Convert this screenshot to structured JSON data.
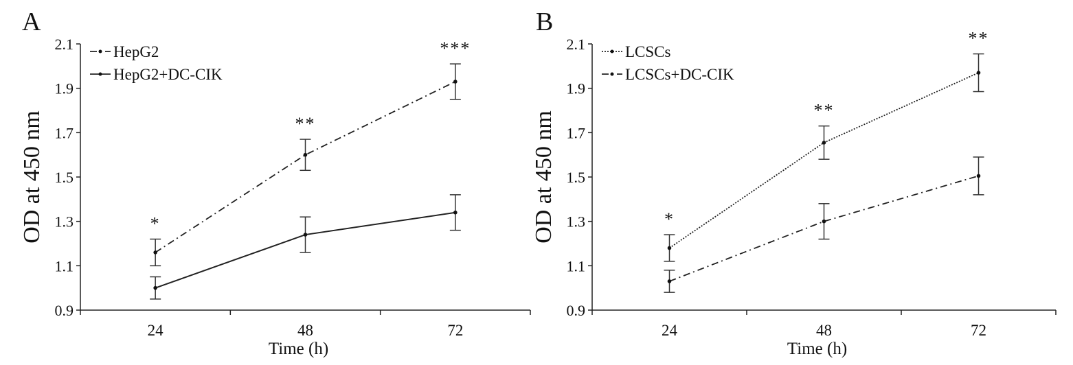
{
  "chart_data": [
    {
      "panel": "A",
      "type": "line",
      "xlabel": "Time (h)",
      "ylabel": "OD at 450 nm",
      "categories": [
        "24",
        "48",
        "72"
      ],
      "ylim": [
        0.9,
        2.1
      ],
      "yticks": [
        "0.9",
        "1.1",
        "1.3",
        "1.5",
        "1.7",
        "1.9",
        "2.1"
      ],
      "legend_position": "top-left",
      "series": [
        {
          "name": "HepG2",
          "style": "dash-dot",
          "values": [
            1.16,
            1.6,
            1.93
          ],
          "errors": [
            0.06,
            0.07,
            0.08
          ]
        },
        {
          "name": "HepG2+DC-CIK",
          "style": "solid",
          "values": [
            1.0,
            1.24,
            1.34
          ],
          "errors": [
            0.05,
            0.08,
            0.08
          ]
        }
      ],
      "significance": [
        "*",
        "**",
        "***"
      ]
    },
    {
      "panel": "B",
      "type": "line",
      "xlabel": "Time (h)",
      "ylabel": "OD at 450 nm",
      "categories": [
        "24",
        "48",
        "72"
      ],
      "ylim": [
        0.9,
        2.1
      ],
      "yticks": [
        "0.9",
        "1.1",
        "1.3",
        "1.5",
        "1.7",
        "1.9",
        "2.1"
      ],
      "legend_position": "top-left",
      "series": [
        {
          "name": "LCSCs",
          "style": "dotted",
          "values": [
            1.18,
            1.655,
            1.97
          ],
          "errors": [
            0.06,
            0.075,
            0.085
          ]
        },
        {
          "name": "LCSCs+DC-CIK",
          "style": "dash-dot",
          "values": [
            1.03,
            1.3,
            1.505
          ],
          "errors": [
            0.05,
            0.08,
            0.085
          ]
        }
      ],
      "significance": [
        "*",
        "**",
        "**"
      ]
    }
  ]
}
